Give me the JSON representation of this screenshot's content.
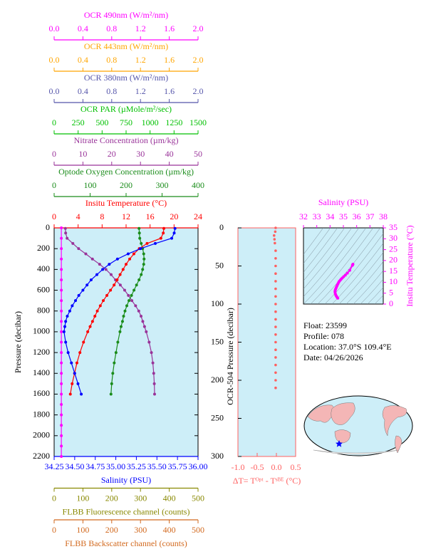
{
  "chart_data": [
    {
      "type": "line",
      "y_label": "Pressure (decibar)",
      "ylim": [
        0,
        2200
      ],
      "yticks": [
        0,
        200,
        400,
        600,
        800,
        1000,
        1200,
        1400,
        1600,
        1800,
        2000,
        2200
      ],
      "axes": [
        {
          "title": "OCR 490nm (W/m²/nm)",
          "color": "#ff00ff",
          "side": "top",
          "xlim": [
            0,
            2
          ],
          "xticks": [
            {
              "value": 0,
              "label": "0.0"
            },
            0.4,
            0.8,
            1.2,
            1.6,
            {
              "value": 2,
              "label": "2.0"
            }
          ]
        },
        {
          "title": "OCR 443nm (W/m²/nm)",
          "color": "#ffa500",
          "side": "top",
          "xlim": [
            0,
            2
          ],
          "xticks": [
            {
              "value": 0,
              "label": "0.0"
            },
            0.4,
            0.8,
            1.2,
            1.6,
            {
              "value": 2,
              "label": "2.0"
            }
          ]
        },
        {
          "title": "OCR 380nm (W/m²/nm)",
          "color": "#5555aa",
          "side": "top",
          "xlim": [
            0,
            2
          ],
          "xticks": [
            {
              "value": 0,
              "label": "0.0"
            },
            0.4,
            0.8,
            1.2,
            1.6,
            {
              "value": 2,
              "label": "2.0"
            }
          ]
        },
        {
          "title": "OCR PAR (µMole/m²/sec)",
          "color": "#00c000",
          "side": "top",
          "xlim": [
            0,
            1500
          ],
          "xticks": [
            0,
            250,
            500,
            750,
            1000,
            1250,
            1500
          ]
        },
        {
          "title": "Nitrate Concentration (µm/kg)",
          "color": "#993399",
          "side": "top",
          "xlim": [
            0,
            50
          ],
          "xticks": [
            0,
            10,
            20,
            30,
            40,
            50
          ]
        },
        {
          "title": "Optode Oxygen Concentration (µm/kg)",
          "color": "#1a8c1a",
          "side": "top",
          "xlim": [
            0,
            400
          ],
          "xticks": [
            0,
            100,
            200,
            300,
            400
          ]
        },
        {
          "title": "Insitu Temperature (°C)",
          "color": "#ff0000",
          "side": "top",
          "xlim": [
            0,
            24
          ],
          "xticks": [
            0,
            4,
            8,
            12,
            16,
            20,
            24
          ]
        },
        {
          "title": "Salinity (PSU)",
          "color": "#0000ff",
          "side": "bottom",
          "xlim": [
            34.25,
            36
          ],
          "xticks": [
            34.25,
            {
              "value": 34.5,
              "label": "34.50"
            },
            34.75,
            {
              "value": 35,
              "label": "35.00"
            },
            35.25,
            {
              "value": 35.5,
              "label": "35.50"
            },
            35.75,
            {
              "value": 36,
              "label": "36.00"
            }
          ]
        },
        {
          "title": "FLBB Fluorescence channel (counts)",
          "color": "#888800",
          "side": "bottom",
          "xlim": [
            0,
            500
          ],
          "xticks": [
            0,
            100,
            200,
            300,
            400,
            500
          ]
        },
        {
          "title": "FLBB Backscatter channel (counts)",
          "color": "#d2691e",
          "side": "bottom",
          "xlim": [
            0,
            500
          ],
          "xticks": [
            0,
            100,
            200,
            300,
            400,
            500
          ]
        }
      ],
      "series": [
        {
          "axis": 0,
          "color": "#ff00ff",
          "y": [
            0,
            100,
            200,
            300,
            400,
            500,
            600,
            700,
            800,
            900,
            1000,
            1100,
            1200,
            1300,
            1400,
            1500,
            1600,
            1700,
            1800,
            1900,
            2000,
            2100,
            2200
          ],
          "values": [
            0.1,
            0.1,
            0.1,
            0.1,
            0.1,
            0.1,
            0.1,
            0.1,
            0.1,
            0.1,
            0.1,
            0.1,
            0.1,
            0.1,
            0.1,
            0.1,
            0.1,
            0.1,
            0.1,
            0.1,
            0.1,
            0.1,
            0.1
          ]
        },
        {
          "axis": 4,
          "color": "#993399",
          "y": [
            5,
            50,
            100,
            150,
            200,
            250,
            300,
            350,
            400,
            450,
            500,
            550,
            600,
            650,
            700,
            750,
            800,
            850,
            900,
            950,
            1000,
            1100,
            1200,
            1300,
            1400,
            1500,
            1600
          ],
          "values": [
            3.9,
            4.0,
            4.5,
            6.5,
            8.5,
            11,
            13.3,
            15.8,
            18,
            19.8,
            21.3,
            23,
            24.5,
            25.8,
            27,
            28.3,
            29.4,
            30.2,
            30.8,
            31.4,
            32,
            33,
            33.8,
            34.3,
            34.6,
            34.8,
            34.9
          ]
        },
        {
          "axis": 5,
          "color": "#1a8c1a",
          "y": [
            5,
            50,
            100,
            150,
            200,
            250,
            300,
            350,
            400,
            450,
            500,
            550,
            600,
            650,
            700,
            750,
            800,
            850,
            900,
            950,
            1000,
            1100,
            1200,
            1300,
            1400,
            1500,
            1600
          ],
          "values": [
            236,
            237,
            238,
            242,
            246,
            249,
            250,
            249,
            246,
            242,
            236,
            229,
            222,
            215,
            208,
            202,
            197,
            193,
            190,
            186,
            183,
            177,
            172,
            167,
            163,
            160,
            158
          ]
        },
        {
          "axis": 6,
          "color": "#ff0000",
          "y": [
            5,
            50,
            100,
            150,
            200,
            250,
            300,
            350,
            400,
            450,
            500,
            550,
            600,
            650,
            700,
            750,
            800,
            850,
            900,
            950,
            1000,
            1100,
            1200,
            1300,
            1400,
            1500,
            1600
          ],
          "values": [
            18.3,
            18.2,
            17.8,
            15.5,
            14.2,
            13.3,
            12.6,
            12.0,
            11.5,
            11.0,
            10.5,
            10.0,
            9.4,
            8.8,
            8.2,
            7.7,
            7.2,
            6.8,
            6.4,
            6.0,
            5.6,
            4.9,
            4.3,
            3.8,
            3.4,
            3.0,
            2.7
          ]
        },
        {
          "axis": 7,
          "color": "#0000ff",
          "y": [
            5,
            50,
            100,
            150,
            200,
            250,
            300,
            350,
            400,
            450,
            500,
            550,
            600,
            650,
            700,
            750,
            800,
            850,
            900,
            950,
            1000,
            1100,
            1200,
            1300,
            1400,
            1500,
            1600
          ],
          "values": [
            35.72,
            35.71,
            35.68,
            35.48,
            35.3,
            35.15,
            35.02,
            34.92,
            34.84,
            34.77,
            34.7,
            34.65,
            34.6,
            34.55,
            34.51,
            34.47,
            34.44,
            34.41,
            34.39,
            34.38,
            34.37,
            34.39,
            34.42,
            34.46,
            34.5,
            34.54,
            34.58
          ]
        }
      ]
    },
    {
      "type": "scatter",
      "x_label": "ΔT= Tᴼᵖᵗ - Tˢᴮᴱ (°C)",
      "y_label": "OCR-504 Pressure (decibar)",
      "color": "#ff6060",
      "xlim": [
        -1,
        0.5
      ],
      "xticks": [
        {
          "value": -1,
          "label": "-1.0"
        },
        -0.5,
        {
          "value": 0,
          "label": "0.0"
        },
        0.5
      ],
      "ylim": [
        0,
        300
      ],
      "yticks": [
        0,
        50,
        100,
        150,
        200,
        250,
        300
      ],
      "y": [
        0,
        5,
        10,
        15,
        20,
        30,
        40,
        50,
        60,
        70,
        80,
        90,
        100,
        110,
        120,
        130,
        140,
        150,
        160,
        170,
        180,
        190,
        200,
        210
      ],
      "values": [
        -0.02,
        -0.03,
        -0.06,
        -0.05,
        -0.04,
        -0.02,
        -0.02,
        -0.02,
        -0.02,
        -0.02,
        -0.02,
        -0.02,
        -0.02,
        -0.02,
        -0.02,
        -0.02,
        -0.02,
        -0.02,
        -0.02,
        -0.02,
        -0.02,
        -0.02,
        -0.02,
        -0.02
      ]
    },
    {
      "type": "scatter",
      "x_label": "Salinity (PSU)",
      "y_label": "Insitu Temperature (°C)",
      "color": "#ff00ff",
      "xlim": [
        32,
        38
      ],
      "xticks": [
        32,
        33,
        34,
        35,
        36,
        37,
        38
      ],
      "ylim": [
        0,
        35
      ],
      "yticks": [
        0,
        5,
        10,
        15,
        20,
        25,
        30,
        35
      ],
      "x": [
        35.72,
        35.71,
        35.68,
        35.48,
        35.3,
        35.15,
        35.02,
        34.92,
        34.84,
        34.77,
        34.7,
        34.65,
        34.6,
        34.55,
        34.51,
        34.47,
        34.44,
        34.41,
        34.39,
        34.38,
        34.37,
        34.39,
        34.42,
        34.46,
        34.5,
        34.54,
        34.58
      ],
      "values": [
        18.3,
        18.2,
        17.8,
        15.5,
        14.2,
        13.3,
        12.6,
        12.0,
        11.5,
        11.0,
        10.5,
        10.0,
        9.4,
        8.8,
        8.2,
        7.7,
        7.2,
        6.8,
        6.4,
        6.0,
        5.6,
        4.9,
        4.3,
        3.8,
        3.4,
        3.0,
        2.7
      ]
    }
  ],
  "info": {
    "lines": [
      "Float:  23599",
      "Profile:  078",
      "Location:  37.0°S  109.4°E",
      "Date:  04/26/2026"
    ]
  }
}
